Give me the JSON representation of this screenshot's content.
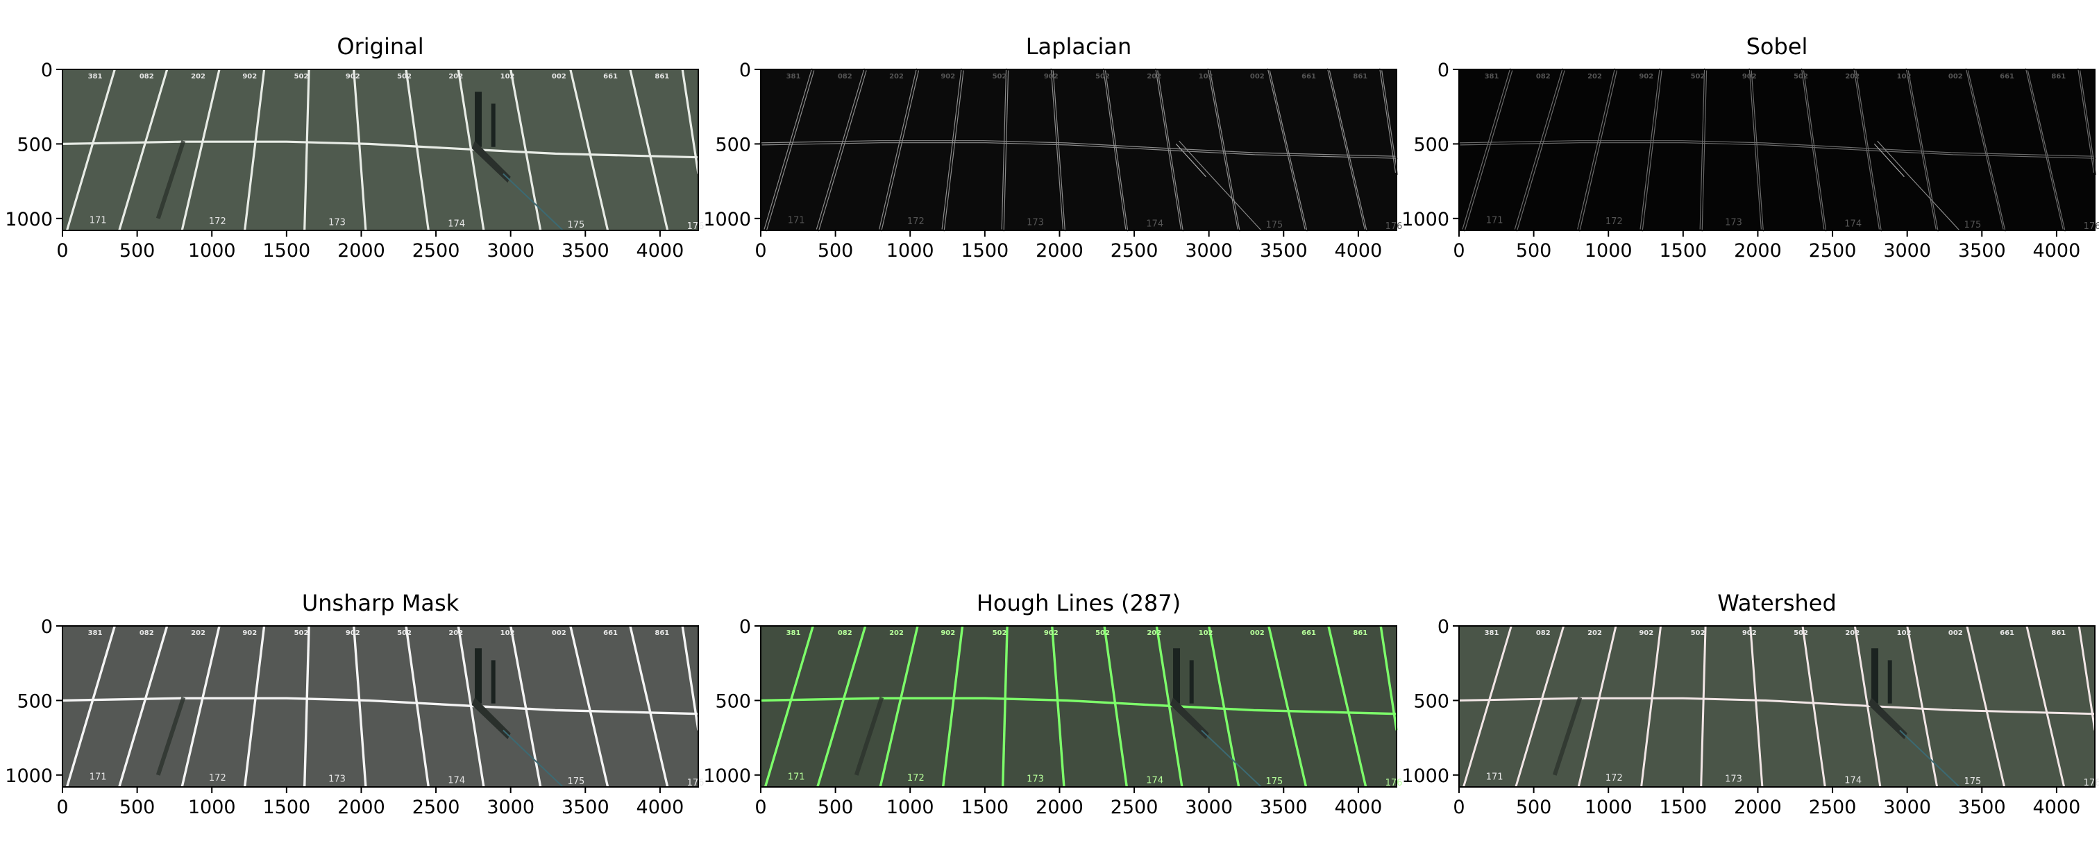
{
  "panels": [
    {
      "title": "Original",
      "style": "original"
    },
    {
      "title": "Laplacian",
      "style": "laplacian"
    },
    {
      "title": "Sobel",
      "style": "sobel"
    },
    {
      "title": "Unsharp Mask",
      "style": "unsharp"
    },
    {
      "title": "Hough Lines (287)",
      "style": "hough"
    },
    {
      "title": "Watershed",
      "style": "watershed"
    }
  ],
  "axis": {
    "x_ticks": [
      "0",
      "500",
      "1000",
      "1500",
      "2000",
      "2500",
      "3000",
      "3500",
      "4000"
    ],
    "y_ticks": [
      "0",
      "500",
      "1000"
    ],
    "x_range": [
      0,
      4256
    ],
    "y_range": [
      1080,
      0
    ]
  },
  "colors": {
    "original_fill": "#4f5a4e",
    "laplacian_fill": "#0b0b0b",
    "sobel_fill": "#050505",
    "unsharp_fill": "#555855",
    "hough_fill": "#414d3f",
    "hough_line": "#7dff6a",
    "watershed_fill": "#4a5548"
  }
}
